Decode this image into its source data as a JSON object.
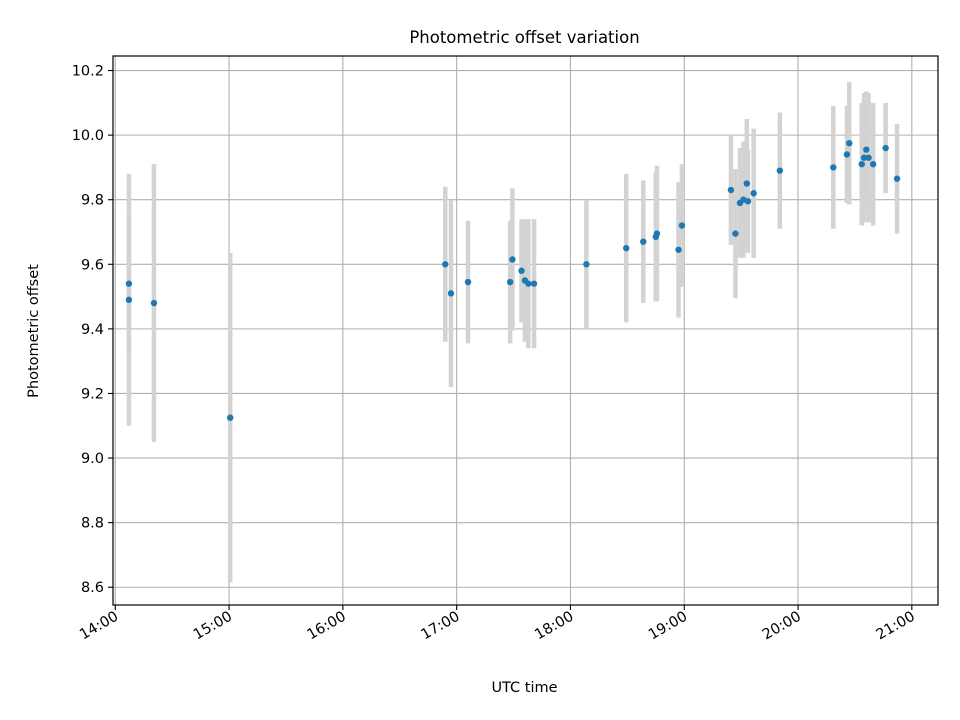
{
  "chart_data": {
    "type": "scatter",
    "title": "Photometric offset variation",
    "xlabel": "UTC time",
    "ylabel": "Photometric offset",
    "x_unit": "hours (UTC)",
    "xlim": [
      13.98,
      21.23
    ],
    "ylim": [
      8.545,
      10.245
    ],
    "grid": true,
    "x_ticks": [
      {
        "value": 14,
        "label": "14:00"
      },
      {
        "value": 15,
        "label": "15:00"
      },
      {
        "value": 16,
        "label": "16:00"
      },
      {
        "value": 17,
        "label": "17:00"
      },
      {
        "value": 18,
        "label": "18:00"
      },
      {
        "value": 19,
        "label": "19:00"
      },
      {
        "value": 20,
        "label": "20:00"
      },
      {
        "value": 21,
        "label": "21:00"
      }
    ],
    "y_ticks": [
      {
        "value": 8.6,
        "label": "8.6"
      },
      {
        "value": 8.8,
        "label": "8.8"
      },
      {
        "value": 9.0,
        "label": "9.0"
      },
      {
        "value": 9.2,
        "label": "9.2"
      },
      {
        "value": 9.4,
        "label": "9.4"
      },
      {
        "value": 9.6,
        "label": "9.6"
      },
      {
        "value": 9.8,
        "label": "9.8"
      },
      {
        "value": 10.0,
        "label": "10.0"
      },
      {
        "value": 10.2,
        "label": "10.2"
      }
    ],
    "series": [
      {
        "name": "offset",
        "marker_color": "#1f77b4",
        "errorbar_color": "#d3d3d3",
        "points": [
          {
            "x": 14.12,
            "y": 9.54,
            "err": 0.2
          },
          {
            "x": 14.12,
            "y": 9.49,
            "err": 0.39
          },
          {
            "x": 14.34,
            "y": 9.48,
            "err": 0.43
          },
          {
            "x": 15.01,
            "y": 9.125,
            "err": 0.51
          },
          {
            "x": 16.9,
            "y": 9.6,
            "err": 0.24
          },
          {
            "x": 16.95,
            "y": 9.51,
            "err": 0.29
          },
          {
            "x": 17.1,
            "y": 9.545,
            "err": 0.19
          },
          {
            "x": 17.47,
            "y": 9.545,
            "err": 0.19
          },
          {
            "x": 17.49,
            "y": 9.615,
            "err": 0.22
          },
          {
            "x": 17.57,
            "y": 9.58,
            "err": 0.16
          },
          {
            "x": 17.6,
            "y": 9.55,
            "err": 0.19
          },
          {
            "x": 17.63,
            "y": 9.54,
            "err": 0.2
          },
          {
            "x": 17.68,
            "y": 9.54,
            "err": 0.2
          },
          {
            "x": 18.14,
            "y": 9.6,
            "err": 0.2
          },
          {
            "x": 18.49,
            "y": 9.65,
            "err": 0.23
          },
          {
            "x": 18.64,
            "y": 9.67,
            "err": 0.19
          },
          {
            "x": 18.75,
            "y": 9.685,
            "err": 0.2
          },
          {
            "x": 18.76,
            "y": 9.695,
            "err": 0.21
          },
          {
            "x": 18.95,
            "y": 9.645,
            "err": 0.21
          },
          {
            "x": 18.98,
            "y": 9.72,
            "err": 0.19
          },
          {
            "x": 19.41,
            "y": 9.83,
            "err": 0.17
          },
          {
            "x": 19.45,
            "y": 9.695,
            "err": 0.2
          },
          {
            "x": 19.49,
            "y": 9.79,
            "err": 0.17
          },
          {
            "x": 19.52,
            "y": 9.8,
            "err": 0.18
          },
          {
            "x": 19.55,
            "y": 9.85,
            "err": 0.2
          },
          {
            "x": 19.56,
            "y": 9.795,
            "err": 0.16
          },
          {
            "x": 19.61,
            "y": 9.82,
            "err": 0.2
          },
          {
            "x": 19.84,
            "y": 9.89,
            "err": 0.18
          },
          {
            "x": 20.31,
            "y": 9.9,
            "err": 0.19
          },
          {
            "x": 20.43,
            "y": 9.94,
            "err": 0.15
          },
          {
            "x": 20.45,
            "y": 9.975,
            "err": 0.19
          },
          {
            "x": 20.56,
            "y": 9.91,
            "err": 0.19
          },
          {
            "x": 20.58,
            "y": 9.93,
            "err": 0.2
          },
          {
            "x": 20.6,
            "y": 9.955,
            "err": 0.18
          },
          {
            "x": 20.62,
            "y": 9.93,
            "err": 0.2
          },
          {
            "x": 20.66,
            "y": 9.91,
            "err": 0.19
          },
          {
            "x": 20.77,
            "y": 9.96,
            "err": 0.14
          },
          {
            "x": 20.87,
            "y": 9.865,
            "err": 0.17
          }
        ]
      }
    ]
  }
}
